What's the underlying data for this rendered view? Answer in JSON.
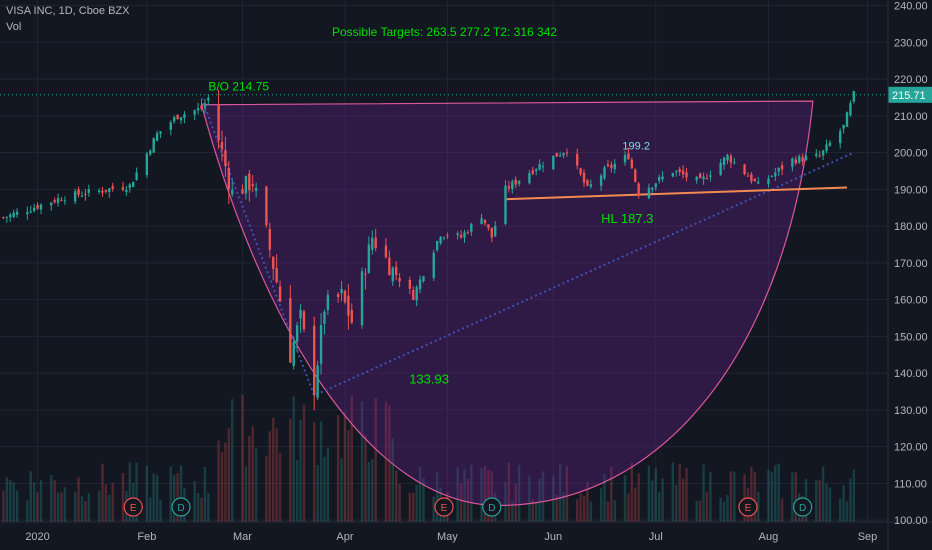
{
  "header": {
    "symbol_line": "VISA INC, 1D, Cboe BZX",
    "volume_label": "Vol",
    "targets_text": "Possible Targets:  263.5    277.2   T2: 316  342"
  },
  "colors": {
    "background": "#131722",
    "up": "#26a69a",
    "down": "#ef5350",
    "cup_fill": "#7b1fa2",
    "cup_stroke": "#d9579a",
    "annotation_green": "#00e000",
    "annotation_cyan": "#80deea",
    "support_line": "#f38a52",
    "trend_line": "#3f51b5",
    "last_price_badge": "#26a69a",
    "axis_text": "#b2b5be",
    "earnings_marker": "#ef5350",
    "dividend_marker": "#26a69a"
  },
  "chart_data": {
    "type": "candlestick",
    "symbol": "VISA INC",
    "interval": "1D",
    "exchange": "Cboe BZX",
    "y_axis": {
      "ticks": [
        240,
        230,
        220,
        210,
        200,
        190,
        180,
        170,
        160,
        150,
        140,
        130,
        120,
        110,
        100
      ],
      "tick_labels": [
        "240.00",
        "230.00",
        "220.00",
        "210.00",
        "200.00",
        "190.00",
        "180.00",
        "170.00",
        "160.00",
        "150.00",
        "140.00",
        "130.00",
        "120.00",
        "110.00",
        "100.00"
      ],
      "range": [
        99.5,
        241.5
      ]
    },
    "x_axis": {
      "labels": [
        "2020",
        "Feb",
        "Mar",
        "Apr",
        "May",
        "Jun",
        "Jul",
        "Aug",
        "Sep"
      ],
      "label_dates": [
        "2020-01-02",
        "2020-02-03",
        "2020-03-02",
        "2020-04-01",
        "2020-05-01",
        "2020-06-01",
        "2020-07-01",
        "2020-08-03",
        "2020-09-01"
      ],
      "range": [
        "2019-12-22",
        "2020-09-07"
      ]
    },
    "last_price": 215.71,
    "last_price_label": "215.71",
    "key_points": [
      {
        "date": "2019-12-22",
        "price": 182
      },
      {
        "date": "2020-01-10",
        "price": 188
      },
      {
        "date": "2020-01-29",
        "price": 191
      },
      {
        "date": "2020-02-06",
        "price": 205
      },
      {
        "date": "2020-02-12",
        "price": 210
      },
      {
        "date": "2020-02-19",
        "price": 212
      },
      {
        "date": "2020-02-21",
        "price": 214.75
      },
      {
        "date": "2020-02-25",
        "price": 200
      },
      {
        "date": "2020-02-28",
        "price": 189
      },
      {
        "date": "2020-03-05",
        "price": 192
      },
      {
        "date": "2020-03-09",
        "price": 178
      },
      {
        "date": "2020-03-12",
        "price": 165
      },
      {
        "date": "2020-03-16",
        "price": 145
      },
      {
        "date": "2020-03-19",
        "price": 155
      },
      {
        "date": "2020-03-23",
        "price": 136
      },
      {
        "date": "2020-03-26",
        "price": 158
      },
      {
        "date": "2020-03-31",
        "price": 161
      },
      {
        "date": "2020-04-03",
        "price": 154
      },
      {
        "date": "2020-04-09",
        "price": 177
      },
      {
        "date": "2020-04-15",
        "price": 168
      },
      {
        "date": "2020-04-21",
        "price": 161
      },
      {
        "date": "2020-04-29",
        "price": 178
      },
      {
        "date": "2020-05-05",
        "price": 177
      },
      {
        "date": "2020-05-11",
        "price": 183
      },
      {
        "date": "2020-05-14",
        "price": 177
      },
      {
        "date": "2020-05-18",
        "price": 190
      },
      {
        "date": "2020-05-27",
        "price": 196
      },
      {
        "date": "2020-06-05",
        "price": 201
      },
      {
        "date": "2020-06-11",
        "price": 190
      },
      {
        "date": "2020-06-16",
        "price": 195
      },
      {
        "date": "2020-06-23",
        "price": 199.2
      },
      {
        "date": "2020-06-26",
        "price": 189
      },
      {
        "date": "2020-07-06",
        "price": 195
      },
      {
        "date": "2020-07-14",
        "price": 192
      },
      {
        "date": "2020-07-22",
        "price": 199
      },
      {
        "date": "2020-07-31",
        "price": 191
      },
      {
        "date": "2020-08-10",
        "price": 198
      },
      {
        "date": "2020-08-18",
        "price": 199
      },
      {
        "date": "2020-08-25",
        "price": 207
      },
      {
        "date": "2020-08-28",
        "price": 215.71
      }
    ],
    "annotations": [
      {
        "text": "B/O 214.75",
        "date": "2020-02-21",
        "price": 214.75
      },
      {
        "text": "133.93",
        "date": "2020-03-23",
        "price": 133.93
      },
      {
        "text": "199.2",
        "date": "2020-06-23",
        "price": 199.2
      },
      {
        "text": "HL 187.3",
        "date": "2020-06-15",
        "price": 187.3
      }
    ],
    "cup_pattern": {
      "left_rim": {
        "date": "2020-02-19",
        "price": 213
      },
      "right_rim": {
        "date": "2020-08-16",
        "price": 214
      },
      "bottom": {
        "date": "2020-05-16",
        "price": 104
      }
    },
    "support_line": [
      {
        "date": "2020-05-18",
        "price": 187.3
      },
      {
        "date": "2020-08-26",
        "price": 190.5
      }
    ],
    "trend_line": [
      {
        "date": "2020-02-19",
        "price": 214.75
      },
      {
        "date": "2020-03-23",
        "price": 133.93
      },
      {
        "date": "2020-08-28",
        "price": 200
      }
    ],
    "earnings_events": [
      "2020-01-30",
      "2020-04-30",
      "2020-07-28"
    ],
    "dividend_events": [
      "2020-02-13",
      "2020-05-14",
      "2020-08-13"
    ],
    "earnings_label": "E",
    "dividend_label": "D",
    "grid": true,
    "volume_pane": true
  }
}
